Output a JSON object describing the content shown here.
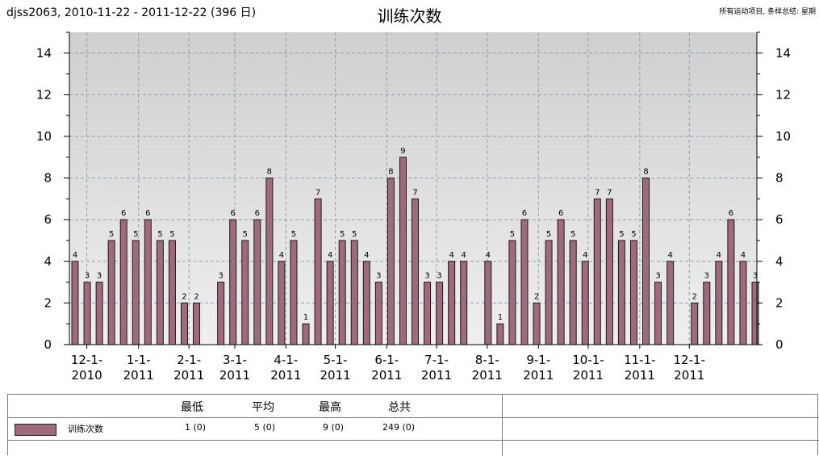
{
  "header": {
    "left": "djss2063, 2010-11-22 - 2011-12-22 (396 日)",
    "title": "训练次数",
    "right": "所有运动项目, 条样总结: 星期"
  },
  "colors": {
    "bar": "#a06a7e",
    "plot_top": "#cfcfcf",
    "plot_bottom": "#efefef",
    "grid": "#8f9fb8"
  },
  "chart_data": {
    "type": "bar",
    "title": "训练次数",
    "ylim": [
      0,
      15
    ],
    "yticks": [
      0,
      2,
      4,
      6,
      8,
      10,
      12,
      14
    ],
    "grid": true,
    "bar_slots": 57,
    "bars": [
      {
        "slot": 0,
        "value": 4
      },
      {
        "slot": 1,
        "value": 3
      },
      {
        "slot": 2,
        "value": 3
      },
      {
        "slot": 3,
        "value": 5
      },
      {
        "slot": 4,
        "value": 6
      },
      {
        "slot": 5,
        "value": 5
      },
      {
        "slot": 6,
        "value": 6
      },
      {
        "slot": 7,
        "value": 5
      },
      {
        "slot": 8,
        "value": 5
      },
      {
        "slot": 9,
        "value": 2
      },
      {
        "slot": 10,
        "value": 2
      },
      {
        "slot": 12,
        "value": 3
      },
      {
        "slot": 13,
        "value": 6
      },
      {
        "slot": 14,
        "value": 5
      },
      {
        "slot": 15,
        "value": 6
      },
      {
        "slot": 16,
        "value": 8
      },
      {
        "slot": 17,
        "value": 4
      },
      {
        "slot": 18,
        "value": 5
      },
      {
        "slot": 19,
        "value": 1
      },
      {
        "slot": 20,
        "value": 7
      },
      {
        "slot": 21,
        "value": 4
      },
      {
        "slot": 22,
        "value": 5
      },
      {
        "slot": 23,
        "value": 5
      },
      {
        "slot": 24,
        "value": 4
      },
      {
        "slot": 25,
        "value": 3
      },
      {
        "slot": 26,
        "value": 8
      },
      {
        "slot": 27,
        "value": 9
      },
      {
        "slot": 28,
        "value": 7
      },
      {
        "slot": 29,
        "value": 3
      },
      {
        "slot": 30,
        "value": 3
      },
      {
        "slot": 31,
        "value": 4
      },
      {
        "slot": 32,
        "value": 4
      },
      {
        "slot": 34,
        "value": 4
      },
      {
        "slot": 35,
        "value": 1
      },
      {
        "slot": 36,
        "value": 5
      },
      {
        "slot": 37,
        "value": 6
      },
      {
        "slot": 38,
        "value": 2
      },
      {
        "slot": 39,
        "value": 5
      },
      {
        "slot": 40,
        "value": 6
      },
      {
        "slot": 41,
        "value": 5
      },
      {
        "slot": 42,
        "value": 4
      },
      {
        "slot": 43,
        "value": 7
      },
      {
        "slot": 44,
        "value": 7
      },
      {
        "slot": 45,
        "value": 5
      },
      {
        "slot": 46,
        "value": 5
      },
      {
        "slot": 47,
        "value": 8
      },
      {
        "slot": 48,
        "value": 3
      },
      {
        "slot": 49,
        "value": 4
      },
      {
        "slot": 51,
        "value": 2
      },
      {
        "slot": 52,
        "value": 3
      },
      {
        "slot": 53,
        "value": 4
      },
      {
        "slot": 54,
        "value": 6
      },
      {
        "slot": 55,
        "value": 4
      },
      {
        "slot": 56,
        "value": 3
      }
    ],
    "xticks": [
      {
        "slot": 0.97,
        "line1": "12-1-",
        "line2": "2010"
      },
      {
        "slot": 5.23,
        "line1": "1-1-",
        "line2": "2011"
      },
      {
        "slot": 9.38,
        "line1": "2-1-",
        "line2": "2011"
      },
      {
        "slot": 13.15,
        "line1": "3-1-",
        "line2": "2011"
      },
      {
        "slot": 17.36,
        "line1": "4-1-",
        "line2": "2011"
      },
      {
        "slot": 21.43,
        "line1": "5-1-",
        "line2": "2011"
      },
      {
        "slot": 25.66,
        "line1": "6-1-",
        "line2": "2011"
      },
      {
        "slot": 29.76,
        "line1": "7-1-",
        "line2": "2011"
      },
      {
        "slot": 33.93,
        "line1": "8-1-",
        "line2": "2011"
      },
      {
        "slot": 38.15,
        "line1": "9-1-",
        "line2": "2011"
      },
      {
        "slot": 42.25,
        "line1": "10-1-",
        "line2": "2011"
      },
      {
        "slot": 46.49,
        "line1": "11-1-",
        "line2": "2011"
      },
      {
        "slot": 50.57,
        "line1": "12-1-",
        "line2": "2011"
      }
    ]
  },
  "summary": {
    "headers": {
      "min": "最低",
      "avg": "平均",
      "max": "最高",
      "total": "总共"
    },
    "row": {
      "name": "训练次数",
      "min": "1 (0)",
      "avg": "5 (0)",
      "max": "9 (0)",
      "total": "249 (0)"
    }
  }
}
